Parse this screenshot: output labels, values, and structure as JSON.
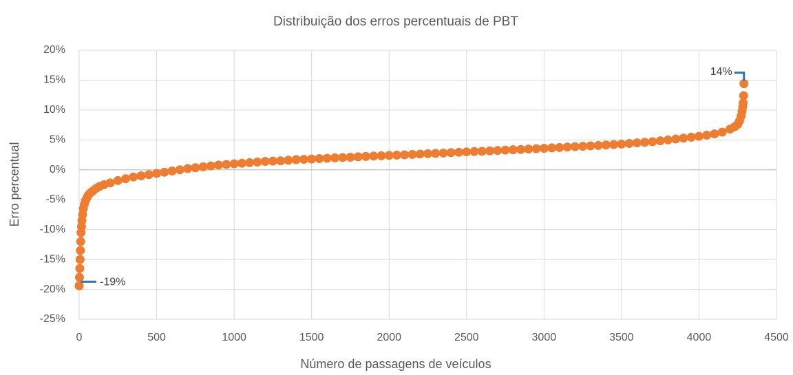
{
  "chart_data": {
    "type": "scatter",
    "title": "Distribuição dos erros percentuais de PBT",
    "xlabel": "Número de passagens de veículos",
    "ylabel": "Erro percentual",
    "series": [
      {
        "color": "#ed7d31",
        "x": [
          0,
          2,
          4,
          6,
          8,
          10,
          12,
          15,
          18,
          22,
          27,
          33,
          40,
          50,
          60,
          75,
          90,
          110,
          130,
          160,
          200,
          250,
          300,
          350,
          400,
          450,
          500,
          550,
          600,
          650,
          700,
          750,
          800,
          850,
          900,
          950,
          1000,
          1050,
          1100,
          1150,
          1200,
          1250,
          1300,
          1350,
          1400,
          1450,
          1500,
          1550,
          1600,
          1650,
          1700,
          1750,
          1800,
          1850,
          1900,
          1950,
          2000,
          2050,
          2100,
          2150,
          2200,
          2250,
          2300,
          2350,
          2400,
          2450,
          2500,
          2550,
          2600,
          2650,
          2700,
          2750,
          2800,
          2850,
          2900,
          2950,
          3000,
          3050,
          3100,
          3150,
          3200,
          3250,
          3300,
          3350,
          3400,
          3450,
          3500,
          3550,
          3600,
          3650,
          3700,
          3750,
          3800,
          3850,
          3900,
          3950,
          4000,
          4050,
          4100,
          4150,
          4200,
          4230,
          4250,
          4262,
          4272,
          4278,
          4282,
          4285,
          4288,
          4290
        ],
        "values": [
          -19.4,
          -18,
          -16.5,
          -15,
          -13.5,
          -12,
          -10.5,
          -9.5,
          -8.5,
          -7.5,
          -6.5,
          -5.8,
          -5.2,
          -4.7,
          -4.2,
          -3.8,
          -3.5,
          -3.1,
          -2.8,
          -2.5,
          -2.2,
          -1.8,
          -1.5,
          -1.2,
          -1.0,
          -0.8,
          -0.6,
          -0.4,
          -0.2,
          0.0,
          0.2,
          0.35,
          0.5,
          0.65,
          0.8,
          0.9,
          1.0,
          1.1,
          1.2,
          1.3,
          1.4,
          1.45,
          1.5,
          1.6,
          1.7,
          1.75,
          1.8,
          1.87,
          1.93,
          2.0,
          2.05,
          2.1,
          2.17,
          2.23,
          2.3,
          2.35,
          2.4,
          2.45,
          2.5,
          2.57,
          2.63,
          2.7,
          2.75,
          2.8,
          2.87,
          2.93,
          3.0,
          3.05,
          3.1,
          3.17,
          3.23,
          3.3,
          3.35,
          3.4,
          3.47,
          3.53,
          3.6,
          3.67,
          3.73,
          3.8,
          3.87,
          3.93,
          4.0,
          4.07,
          4.15,
          4.22,
          4.3,
          4.4,
          4.5,
          4.6,
          4.7,
          4.85,
          5.0,
          5.15,
          5.3,
          5.45,
          5.6,
          5.8,
          6.0,
          6.3,
          6.8,
          7.2,
          7.6,
          8.2,
          9.0,
          9.8,
          10.5,
          11.2,
          12.4,
          14.4
        ]
      }
    ],
    "annotations": [
      {
        "text": "-19%"
      },
      {
        "text": "14%"
      }
    ],
    "xlim": [
      0,
      4500
    ],
    "xticks": [
      0,
      500,
      1000,
      1500,
      2000,
      2500,
      3000,
      3500,
      4000,
      4500
    ],
    "ylim": [
      -25,
      20
    ],
    "yticks": [
      {
        "value": -25,
        "label": "-25%"
      },
      {
        "value": -20,
        "label": "-20%"
      },
      {
        "value": -15,
        "label": "-15%"
      },
      {
        "value": -10,
        "label": "-10%"
      },
      {
        "value": -5,
        "label": "-5%"
      },
      {
        "value": 0,
        "label": "0%"
      },
      {
        "value": 5,
        "label": "5%"
      },
      {
        "value": 10,
        "label": "10%"
      },
      {
        "value": 15,
        "label": "15%"
      },
      {
        "value": 20,
        "label": "20%"
      }
    ],
    "grid": true
  }
}
